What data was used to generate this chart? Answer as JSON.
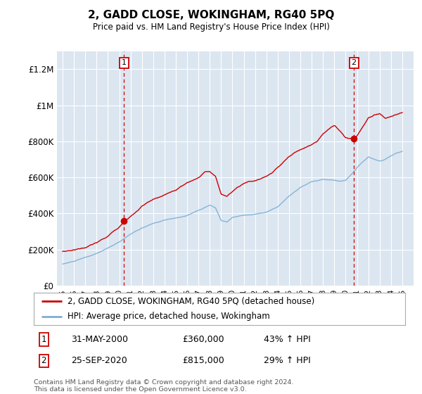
{
  "title": "2, GADD CLOSE, WOKINGHAM, RG40 5PQ",
  "subtitle": "Price paid vs. HM Land Registry's House Price Index (HPI)",
  "background_color": "#dce6f1",
  "plot_bg_color": "#dce6f1",
  "red_color": "#cc0000",
  "blue_color": "#7bafd4",
  "ylim": [
    0,
    1300000
  ],
  "yticks": [
    0,
    200000,
    400000,
    600000,
    800000,
    1000000,
    1200000
  ],
  "ytick_labels": [
    "£0",
    "£200K",
    "£400K",
    "£600K",
    "£800K",
    "£1M",
    "£1.2M"
  ],
  "sale1_x": 2000.42,
  "sale1_y": 360000,
  "sale2_x": 2020.73,
  "sale2_y": 815000,
  "legend_line1": "2, GADD CLOSE, WOKINGHAM, RG40 5PQ (detached house)",
  "legend_line2": "HPI: Average price, detached house, Wokingham",
  "annotation1_date": "31-MAY-2000",
  "annotation1_price": "£360,000",
  "annotation1_hpi": "43% ↑ HPI",
  "annotation2_date": "25-SEP-2020",
  "annotation2_price": "£815,000",
  "annotation2_hpi": "29% ↑ HPI",
  "footer": "Contains HM Land Registry data © Crown copyright and database right 2024.\nThis data is licensed under the Open Government Licence v3.0.",
  "xmin": 1994.5,
  "xmax": 2026.0,
  "xticks": [
    1995,
    1996,
    1997,
    1998,
    1999,
    2000,
    2001,
    2002,
    2003,
    2004,
    2005,
    2006,
    2007,
    2008,
    2009,
    2010,
    2011,
    2012,
    2013,
    2014,
    2015,
    2016,
    2017,
    2018,
    2019,
    2020,
    2021,
    2022,
    2023,
    2024,
    2025
  ]
}
